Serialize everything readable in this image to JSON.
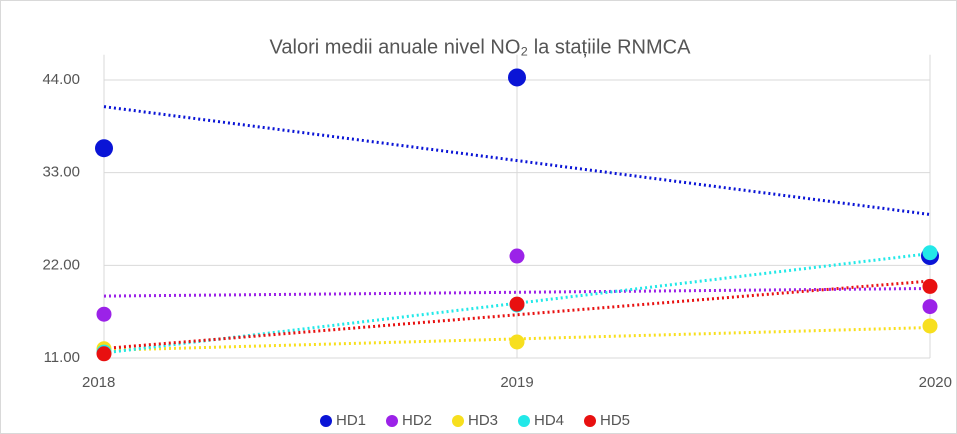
{
  "chart_data": {
    "type": "scatter",
    "title": "Valori medii anuale nivel NO₂ la stațiile RNMCA",
    "x": [
      2018,
      2019,
      2020
    ],
    "series": [
      {
        "name": "HD1",
        "color": "#0a14d6",
        "values": [
          35.9,
          44.3,
          23.1
        ]
      },
      {
        "name": "HD2",
        "color": "#9b22e8",
        "values": [
          16.2,
          23.1,
          17.1
        ]
      },
      {
        "name": "HD3",
        "color": "#f7df1e",
        "values": [
          12.1,
          12.9,
          14.8
        ]
      },
      {
        "name": "HD4",
        "color": "#22e8e8",
        "values": [
          11.7,
          17.3,
          23.5
        ]
      },
      {
        "name": "HD5",
        "color": "#e81010",
        "values": [
          11.5,
          17.4,
          19.5
        ]
      }
    ],
    "xlim": [
      2018,
      2020
    ],
    "xticks": [
      2018,
      2019,
      2020
    ],
    "ylim": [
      11,
      47
    ],
    "yticks": [
      {
        "value": 11,
        "label": "11.00"
      },
      {
        "value": 22,
        "label": "22.00"
      },
      {
        "value": 33,
        "label": "33.00"
      },
      {
        "value": 44,
        "label": "44.00"
      }
    ],
    "trendline": true,
    "grid": true,
    "legend": "bottom"
  }
}
